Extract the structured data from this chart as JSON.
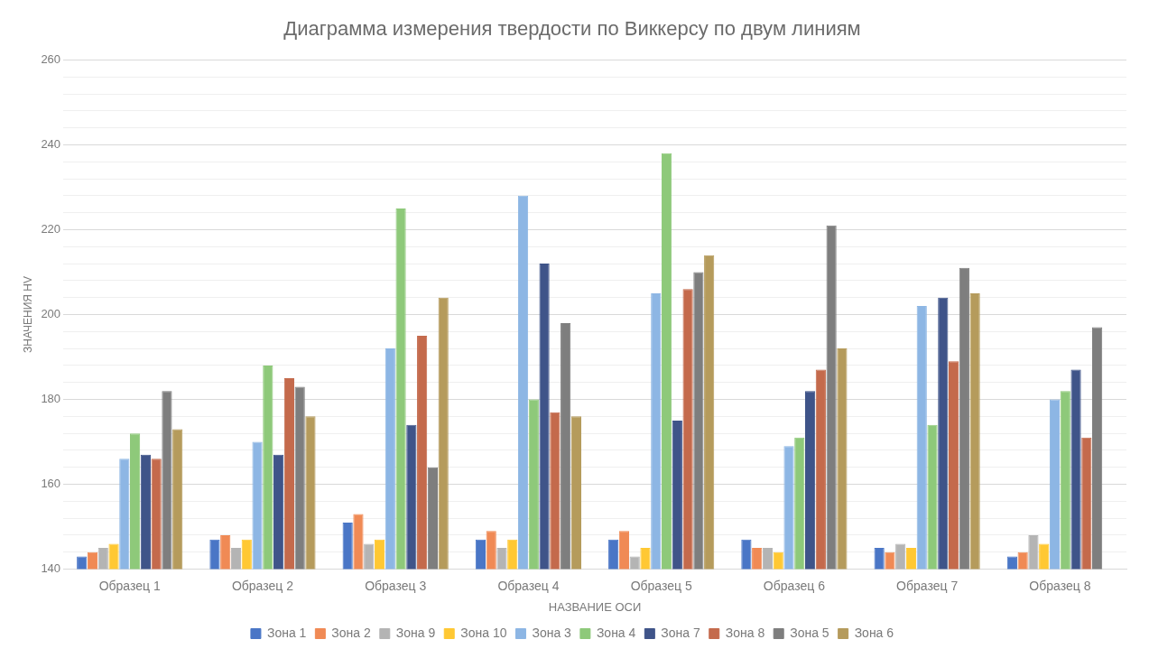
{
  "chart_data": {
    "type": "bar",
    "title": "Диаграмма измерения твердости по Виккерсу по двум линиям",
    "xlabel": "НАЗВАНИЕ ОСИ",
    "ylabel": "ЗНАЧЕНИЯ HV",
    "categories": [
      "Образец 1",
      "Образец 2",
      "Образец 3",
      "Образец 4",
      "Образец 5",
      "Образец 6",
      "Образец 7",
      "Образец 8"
    ],
    "series": [
      {
        "name": "Зона 1",
        "color": "#4a76c6",
        "values": [
          143,
          147,
          151,
          147,
          147,
          147,
          145,
          143
        ]
      },
      {
        "name": "Зона 2",
        "color": "#f08a55",
        "values": [
          144,
          148,
          153,
          149,
          149,
          145,
          144,
          144
        ]
      },
      {
        "name": "Зона 9",
        "color": "#b4b4b4",
        "values": [
          145,
          145,
          146,
          145,
          143,
          145,
          146,
          148
        ]
      },
      {
        "name": "Зона 10",
        "color": "#ffc833",
        "values": [
          146,
          147,
          147,
          147,
          145,
          144,
          145,
          146
        ]
      },
      {
        "name": "Зона 3",
        "color": "#8db6e4",
        "values": [
          166,
          170,
          192,
          228,
          205,
          169,
          202,
          180
        ]
      },
      {
        "name": "Зона 4",
        "color": "#8ec97a",
        "values": [
          172,
          188,
          225,
          180,
          238,
          171,
          174,
          182
        ]
      },
      {
        "name": "Зона 7",
        "color": "#3f5489",
        "values": [
          167,
          167,
          174,
          212,
          175,
          182,
          204,
          187
        ]
      },
      {
        "name": "Зона 8",
        "color": "#c46a4c",
        "values": [
          166,
          185,
          195,
          177,
          206,
          187,
          189,
          171
        ]
      },
      {
        "name": "Зона 5",
        "color": "#7e7e7e",
        "values": [
          182,
          183,
          164,
          198,
          210,
          221,
          211,
          197
        ]
      },
      {
        "name": "Зона 6",
        "color": "#b59b5c",
        "values": [
          173,
          176,
          204,
          176,
          214,
          192,
          205,
          null
        ]
      }
    ],
    "ylim": [
      140,
      260
    ],
    "yticks": [
      140,
      {
        "value": 144,
        "label": null
      },
      {
        "value": 148,
        "label": null
      },
      {
        "value": 152,
        "label": null
      },
      {
        "value": 156,
        "label": null
      },
      160,
      {
        "value": 164,
        "label": null
      },
      {
        "value": 168,
        "label": null
      },
      {
        "value": 172,
        "label": null
      },
      {
        "value": 176,
        "label": null
      },
      180,
      {
        "value": 184,
        "label": null
      },
      {
        "value": 188,
        "label": null
      },
      {
        "value": 192,
        "label": null
      },
      {
        "value": 196,
        "label": null
      },
      200,
      {
        "value": 204,
        "label": null
      },
      {
        "value": 208,
        "label": null
      },
      {
        "value": 212,
        "label": null
      },
      {
        "value": 216,
        "label": null
      },
      220,
      {
        "value": 224,
        "label": null
      },
      {
        "value": 228,
        "label": null
      },
      {
        "value": 232,
        "label": null
      },
      {
        "value": 236,
        "label": null
      },
      240,
      {
        "value": 244,
        "label": null
      },
      {
        "value": 248,
        "label": null
      },
      {
        "value": 252,
        "label": null
      },
      {
        "value": 256,
        "label": null
      },
      260
    ],
    "grid": "y",
    "legend": "bottom"
  }
}
